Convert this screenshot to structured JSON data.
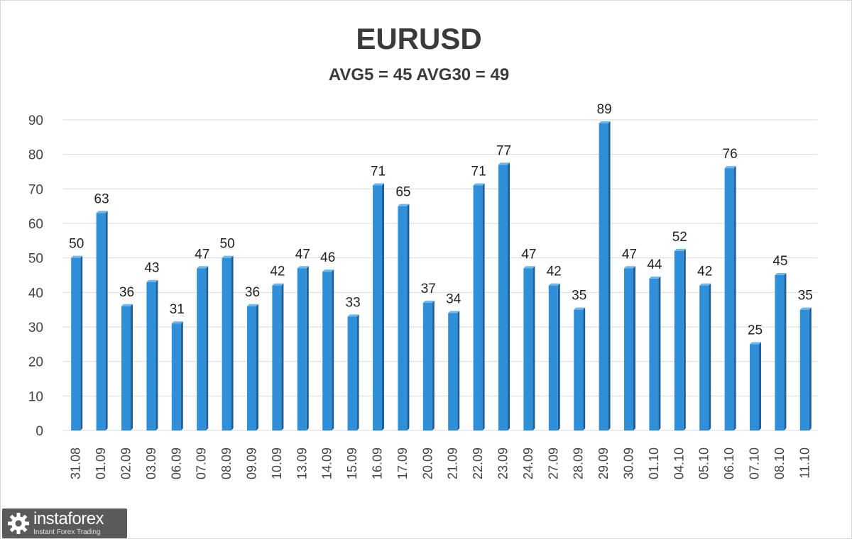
{
  "chart_data": {
    "type": "bar",
    "title": "EURUSD",
    "subtitle": "AVG5 = 45 AVG30 = 49",
    "categories": [
      "31.08",
      "01.09",
      "02.09",
      "03.09",
      "06.09",
      "07.09",
      "08.09",
      "09.09",
      "10.09",
      "13.09",
      "14.09",
      "15.09",
      "16.09",
      "17.09",
      "20.09",
      "21.09",
      "22.09",
      "23.09",
      "24.09",
      "27.09",
      "28.09",
      "29.09",
      "30.09",
      "01.10",
      "04.10",
      "05.10",
      "06.10",
      "07.10",
      "08.10",
      "11.10"
    ],
    "values": [
      50,
      63,
      36,
      43,
      31,
      47,
      50,
      36,
      42,
      47,
      46,
      33,
      71,
      65,
      37,
      34,
      71,
      77,
      47,
      42,
      35,
      89,
      47,
      44,
      52,
      42,
      76,
      25,
      45,
      35
    ],
    "ylim": [
      0,
      90
    ],
    "yticks": [
      0,
      10,
      20,
      30,
      40,
      50,
      60,
      70,
      80,
      90
    ],
    "grid": true,
    "bar_color": "#2f8fd8",
    "bar_side_color": "#1f5f9a",
    "xlabel": "",
    "ylabel": ""
  },
  "watermark": {
    "name": "instaforex",
    "tagline": "Instant Forex Trading",
    "icon": "gear-icon"
  }
}
